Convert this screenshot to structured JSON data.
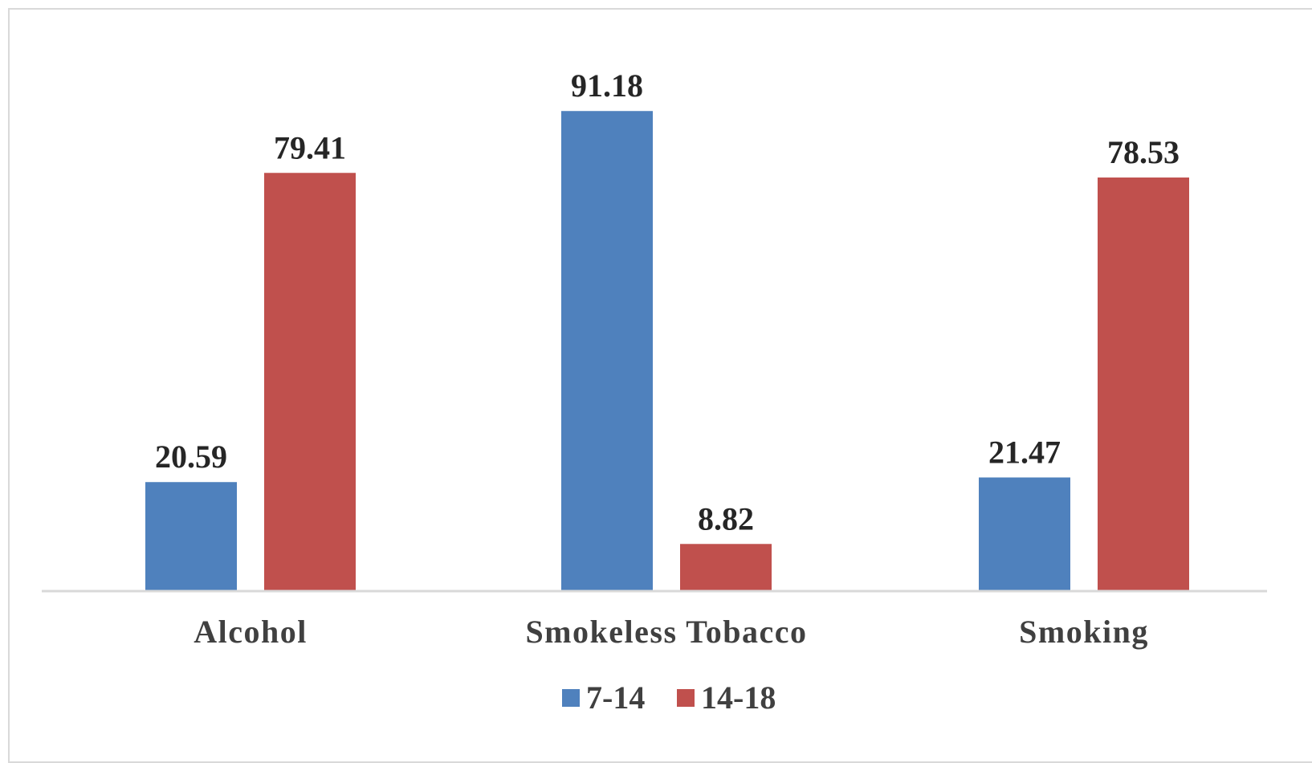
{
  "chart_data": {
    "type": "bar",
    "title": "",
    "xlabel": "",
    "ylabel": "",
    "categories": [
      "Alcohol",
      "Smokeless Tobacco",
      "Smoking"
    ],
    "series": [
      {
        "name": "7-14",
        "values": [
          20.59,
          91.18,
          21.47
        ],
        "color": "#4F81BD"
      },
      {
        "name": "14-18",
        "values": [
          79.41,
          8.82,
          78.53
        ],
        "color": "#C0504D"
      }
    ],
    "ylim": [
      0,
      100
    ],
    "grid": false,
    "legend_position": "bottom",
    "data_labels": true
  }
}
